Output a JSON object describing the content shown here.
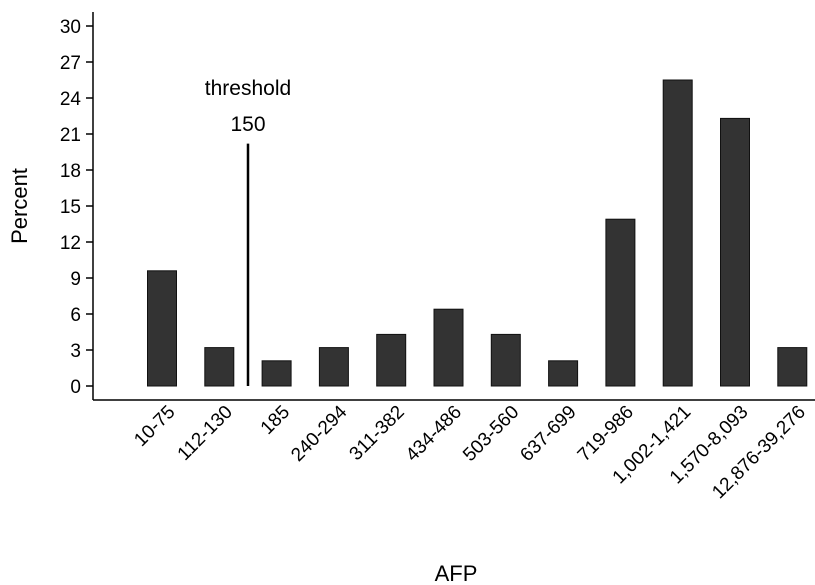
{
  "chart_data": {
    "type": "bar",
    "xlabel": "AFP",
    "ylabel": "Percent",
    "ylim": [
      0,
      30
    ],
    "yticks": [
      0,
      3,
      6,
      9,
      12,
      15,
      18,
      21,
      24,
      27,
      30
    ],
    "categories": [
      "10-75",
      "112-130",
      "185",
      "240-294",
      "311-382",
      "434-486",
      "503-560",
      "637-699",
      "719-986",
      "1,002-1,421",
      "1,570-8,093",
      "12,876-39,276"
    ],
    "values": [
      9.6,
      3.2,
      2.1,
      3.2,
      4.3,
      6.4,
      4.3,
      2.1,
      13.9,
      25.5,
      22.3,
      3.2
    ],
    "annotation": {
      "line1": "threshold",
      "line2": "150",
      "line_top_value": 20.2
    },
    "grid": false,
    "legend": "none",
    "bar_color": "#333333"
  }
}
